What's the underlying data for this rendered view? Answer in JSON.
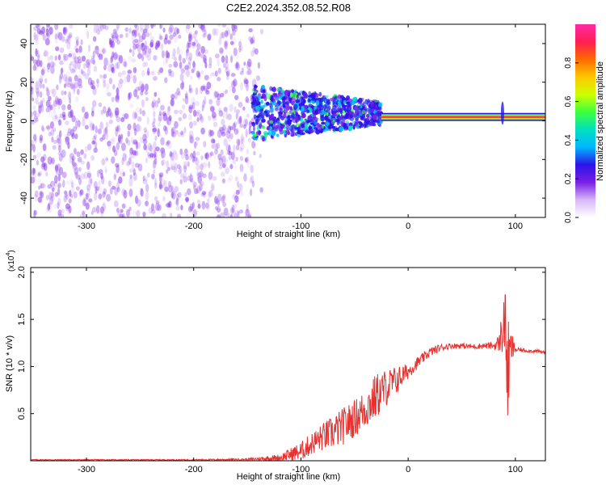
{
  "title": "C2E2.2024.352.08.52.R08",
  "chart_data": [
    {
      "type": "heatmap",
      "xlabel": "Height of straight line (km)",
      "ylabel": "Frequency (Hz)",
      "xlim": [
        -352,
        128
      ],
      "ylim": [
        -50,
        50
      ],
      "xticks": [
        -300,
        -200,
        -100,
        0,
        100
      ],
      "yticks": [
        -40,
        -20,
        0,
        20,
        40
      ],
      "colorbar": {
        "label": "Normalized spectral amplitude",
        "range": [
          0,
          1
        ],
        "ticks": [
          "0.0",
          "0.2",
          "0.4",
          "0.6",
          "0.8"
        ],
        "colormap": [
          "#ffffff",
          "#d6b8f5",
          "#7a1fe6",
          "#2b14e8",
          "#00b7ff",
          "#00e0c0",
          "#3cff3c",
          "#d0ff00",
          "#ffc800",
          "#ff6a00",
          "#ff1e50",
          "#ff2aa8"
        ]
      },
      "regions": [
        {
          "name": "noise",
          "x_range": [
            -352,
            -130
          ],
          "freq_range": [
            -50,
            50
          ],
          "amplitude": 0.05
        },
        {
          "name": "transition",
          "x_range": [
            -145,
            -25
          ],
          "freq_range": [
            -10,
            15
          ],
          "amplitude": 0.25
        },
        {
          "name": "signal-line",
          "x_range": [
            -25,
            128
          ],
          "freq": 2,
          "amplitude": 0.9
        },
        {
          "name": "spike",
          "x": 88,
          "freq_range": [
            -2,
            10
          ],
          "amplitude": 0.3
        }
      ]
    },
    {
      "type": "line",
      "xlabel": "Height of straight line (km)",
      "ylabel": "SNR (10 * v/v)",
      "multiplier": "(x10",
      "multiplier_exp": "4",
      "multiplier_close": ")",
      "xlim": [
        -352,
        128
      ],
      "ylim": [
        0,
        2.05
      ],
      "xticks": [
        -300,
        -200,
        -100,
        0,
        100
      ],
      "yticks": [
        "0.5",
        "1.0",
        "1.5",
        "2.0"
      ],
      "color": "#e8312f",
      "series": [
        {
          "x": [
            -352,
            -300,
            -250,
            -200,
            -150,
            -120,
            -100,
            -90,
            -80,
            -70,
            -60,
            -50,
            -40,
            -30,
            -20,
            -10,
            0,
            10,
            20,
            30,
            40,
            50,
            60,
            70,
            80,
            85,
            90,
            93,
            96,
            100,
            110,
            120,
            128
          ],
          "values": [
            0.01,
            0.01,
            0.01,
            0.01,
            0.015,
            0.03,
            0.1,
            0.18,
            0.25,
            0.3,
            0.37,
            0.45,
            0.55,
            0.68,
            0.78,
            0.86,
            0.95,
            1.05,
            1.15,
            1.2,
            1.22,
            1.22,
            1.21,
            1.22,
            1.22,
            1.25,
            1.5,
            0.9,
            1.2,
            1.18,
            1.17,
            1.16,
            1.15
          ],
          "noise": [
            0.005,
            0.005,
            0.005,
            0.006,
            0.01,
            0.04,
            0.1,
            0.12,
            0.15,
            0.18,
            0.2,
            0.2,
            0.22,
            0.25,
            0.2,
            0.15,
            0.08,
            0.06,
            0.05,
            0.04,
            0.03,
            0.03,
            0.03,
            0.03,
            0.04,
            0.1,
            0.4,
            0.6,
            0.2,
            0.03,
            0.02,
            0.02,
            0.02
          ]
        }
      ]
    }
  ]
}
